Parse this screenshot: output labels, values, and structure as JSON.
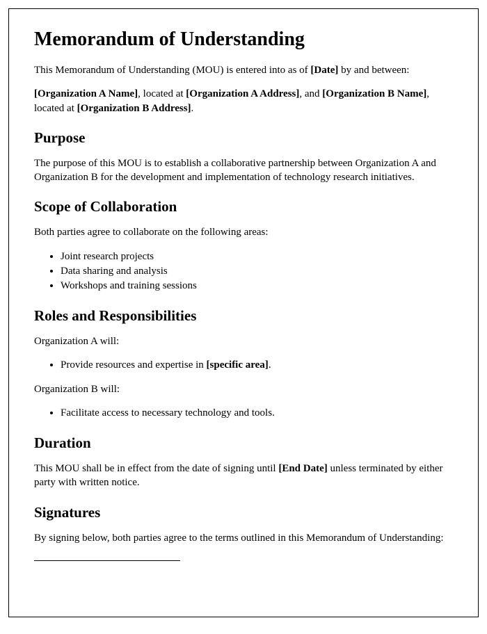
{
  "title": "Memorandum of Understanding",
  "intro": {
    "prefix": "This Memorandum of Understanding (MOU) is entered into as of ",
    "date": "[Date]",
    "suffix": " by and between:"
  },
  "parties": {
    "orgA_name": "[Organization A Name]",
    "locA": ", located at ",
    "orgA_addr": "[Organization A Address]",
    "and": ", and ",
    "orgB_name": "[Organization B Name]",
    "locB": ", located at ",
    "orgB_addr": "[Organization B Address]",
    "end": "."
  },
  "purpose": {
    "heading": "Purpose",
    "text": "The purpose of this MOU is to establish a collaborative partnership between Organization A and Organization B for the development and implementation of technology research initiatives."
  },
  "scope": {
    "heading": "Scope of Collaboration",
    "intro": "Both parties agree to collaborate on the following areas:",
    "items": [
      "Joint research projects",
      "Data sharing and analysis",
      "Workshops and training sessions"
    ]
  },
  "roles": {
    "heading": "Roles and Responsibilities",
    "orgA_intro": "Organization A will:",
    "orgA_item_prefix": "Provide resources and expertise in ",
    "orgA_item_bold": "[specific area]",
    "orgA_item_suffix": ".",
    "orgB_intro": "Organization B will:",
    "orgB_item": "Facilitate access to necessary technology and tools."
  },
  "duration": {
    "heading": "Duration",
    "prefix": "This MOU shall be in effect from the date of signing until ",
    "end_date": "[End Date]",
    "suffix": " unless terminated by either party with written notice."
  },
  "signatures": {
    "heading": "Signatures",
    "text": "By signing below, both parties agree to the terms outlined in this Memorandum of Understanding:"
  }
}
